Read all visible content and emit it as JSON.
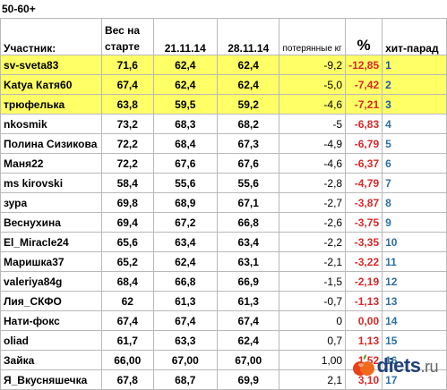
{
  "group_label": "50-60+",
  "headers": {
    "participant": "Участник:",
    "start_weight": "Вес на старте",
    "date1": "21.11.14",
    "date2": "28.11.14",
    "lost": "потерянные кг",
    "percent": "%",
    "rank": "хит-парад"
  },
  "rows": [
    {
      "name": "sv-sveta83",
      "start": "71,6",
      "d1": "62,4",
      "d2": "62,4",
      "lost": "-9,2",
      "pct": "-12,85",
      "rank": "1",
      "highlight": true
    },
    {
      "name": "Katya Катя60",
      "start": "67,4",
      "d1": "62,4",
      "d2": "62,4",
      "lost": "-5,0",
      "pct": "-7,42",
      "rank": "2",
      "highlight": true
    },
    {
      "name": "трюфелька",
      "start": "63,8",
      "d1": "59,5",
      "d2": "59,2",
      "lost": "-4,6",
      "pct": "-7,21",
      "rank": "3",
      "highlight": true
    },
    {
      "name": "nkosmik",
      "start": "73,2",
      "d1": "68,3",
      "d2": "68,2",
      "lost": "-5",
      "pct": "-6,83",
      "rank": "4",
      "highlight": false
    },
    {
      "name": "Полина Сизикова",
      "start": "72,2",
      "d1": "68,4",
      "d2": "67,3",
      "lost": "-4,9",
      "pct": "-6,79",
      "rank": "5",
      "highlight": false
    },
    {
      "name": "Маня22",
      "start": "72,2",
      "d1": "67,6",
      "d2": "67,6",
      "lost": "-4,6",
      "pct": "-6,37",
      "rank": "6",
      "highlight": false
    },
    {
      "name": "ms kirovski",
      "start": "58,4",
      "d1": "55,6",
      "d2": "55,6",
      "lost": "-2,8",
      "pct": "-4,79",
      "rank": "7",
      "highlight": false
    },
    {
      "name": "зура",
      "start": "69,8",
      "d1": "68,9",
      "d2": "67,1",
      "lost": "-2,7",
      "pct": "-3,87",
      "rank": "8",
      "highlight": false
    },
    {
      "name": "Веснухина",
      "start": "69,4",
      "d1": "67,2",
      "d2": "66,8",
      "lost": "-2,6",
      "pct": "-3,75",
      "rank": "9",
      "highlight": false
    },
    {
      "name": "El_Miracle24",
      "start": "65,6",
      "d1": "63,4",
      "d2": "63,4",
      "lost": "-2,2",
      "pct": "-3,35",
      "rank": "10",
      "highlight": false
    },
    {
      "name": "Маришка37",
      "start": "65,2",
      "d1": "62,4",
      "d2": "63,1",
      "lost": "-2,1",
      "pct": "-3,22",
      "rank": "11",
      "highlight": false
    },
    {
      "name": "valeriya84g",
      "start": "68,4",
      "d1": "66,8",
      "d2": "66,9",
      "lost": "-1,5",
      "pct": "-2,19",
      "rank": "12",
      "highlight": false
    },
    {
      "name": "Лия_СКФО",
      "start": "62",
      "d1": "61,3",
      "d2": "61,3",
      "lost": "-0,7",
      "pct": "-1,13",
      "rank": "13",
      "highlight": false
    },
    {
      "name": "Нати-фокс",
      "start": "67,4",
      "d1": "67,4",
      "d2": "67,4",
      "lost": "0",
      "pct": "0,00",
      "rank": "14",
      "highlight": false
    },
    {
      "name": "oliad",
      "start": "61,7",
      "d1": "63,3",
      "d2": "62,4",
      "lost": "0,7",
      "pct": "1,13",
      "rank": "15",
      "highlight": false
    },
    {
      "name": "Зайка",
      "start": "66,00",
      "d1": "67,00",
      "d2": "67,00",
      "lost": "1,00",
      "pct": "1,52",
      "rank": "16",
      "highlight": false
    },
    {
      "name": "Я_Вкусняшечка",
      "start": "67,8",
      "d1": "68,7",
      "d2": "69,9",
      "lost": "2,1",
      "pct": "3,10",
      "rank": "17",
      "highlight": false
    }
  ],
  "logo": {
    "brand": "diets",
    "tld": ".ru",
    "icon": "apple-icon"
  },
  "colors": {
    "highlight": "#ffff66",
    "percent": "#d62828",
    "rank": "#2e6fa0",
    "logo": "#1f3f78"
  }
}
